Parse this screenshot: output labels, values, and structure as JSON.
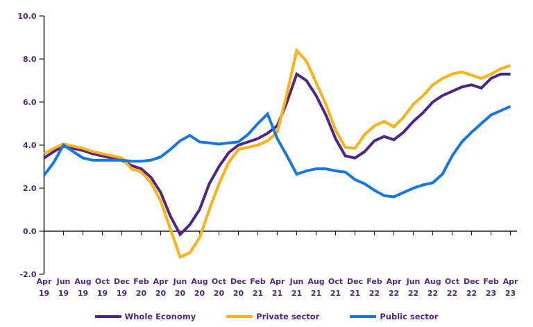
{
  "chart_data": {
    "type": "line",
    "title": "",
    "xlabel": "",
    "ylabel": "",
    "ylim": [
      -2.0,
      10.0
    ],
    "grid": false,
    "legend_position": "bottom",
    "x_range": [
      "Apr 19",
      "Apr 23"
    ],
    "points_per_tick": 2,
    "y_ticks": [
      10.0,
      8.0,
      6.0,
      4.0,
      2.0,
      0.0,
      -2.0
    ],
    "y_tick_labels": [
      "10.0",
      "8.0",
      "6.0",
      "4.0",
      "2.0",
      "0.0",
      "-2.0"
    ],
    "x_tick_labels": [
      [
        "Apr",
        "19"
      ],
      [
        "Jun",
        "19"
      ],
      [
        "Aug",
        "19"
      ],
      [
        "Oct",
        "19"
      ],
      [
        "Dec",
        "19"
      ],
      [
        "Feb",
        "20"
      ],
      [
        "Apr",
        "20"
      ],
      [
        "Jun",
        "20"
      ],
      [
        "Aug",
        "20"
      ],
      [
        "Oct",
        "20"
      ],
      [
        "Dec",
        "20"
      ],
      [
        "Feb",
        "21"
      ],
      [
        "Apr",
        "21"
      ],
      [
        "Jun",
        "21"
      ],
      [
        "Aug",
        "21"
      ],
      [
        "Oct",
        "21"
      ],
      [
        "Dec",
        "21"
      ],
      [
        "Feb",
        "22"
      ],
      [
        "Apr",
        "22"
      ],
      [
        "Jun",
        "22"
      ],
      [
        "Aug",
        "22"
      ],
      [
        "Oct",
        "22"
      ],
      [
        "Dec",
        "22"
      ],
      [
        "Feb",
        "23"
      ],
      [
        "Apr",
        "23"
      ]
    ],
    "series": [
      {
        "name": "Whole Economy",
        "color": "#4F2683",
        "values": [
          3.4,
          3.7,
          3.95,
          3.85,
          3.75,
          3.6,
          3.5,
          3.4,
          3.3,
          3.05,
          2.9,
          2.5,
          1.8,
          0.7,
          -0.15,
          0.3,
          1.0,
          2.2,
          3.0,
          3.65,
          4.0,
          4.15,
          4.3,
          4.55,
          4.9,
          6.0,
          7.3,
          7.0,
          6.3,
          5.4,
          4.3,
          3.5,
          3.4,
          3.7,
          4.2,
          4.4,
          4.25,
          4.6,
          5.1,
          5.5,
          6.0,
          6.3,
          6.5,
          6.7,
          6.8,
          6.65,
          7.1,
          7.3,
          7.3
        ]
      },
      {
        "name": "Private sector",
        "color": "#FFB114",
        "values": [
          3.6,
          3.85,
          4.05,
          3.95,
          3.85,
          3.7,
          3.6,
          3.5,
          3.4,
          2.9,
          2.75,
          2.25,
          1.4,
          0.1,
          -1.2,
          -1.0,
          -0.3,
          1.0,
          2.2,
          3.2,
          3.8,
          3.9,
          4.0,
          4.2,
          4.6,
          6.4,
          8.4,
          7.9,
          6.9,
          5.9,
          4.7,
          3.9,
          3.85,
          4.5,
          4.9,
          5.1,
          4.85,
          5.3,
          5.9,
          6.3,
          6.8,
          7.1,
          7.3,
          7.4,
          7.25,
          7.1,
          7.3,
          7.55,
          7.7
        ]
      },
      {
        "name": "Public sector",
        "color": "#1478E0",
        "values": [
          2.6,
          3.2,
          4.0,
          3.7,
          3.4,
          3.3,
          3.3,
          3.3,
          3.3,
          3.25,
          3.25,
          3.3,
          3.45,
          3.8,
          4.2,
          4.45,
          4.15,
          4.1,
          4.05,
          4.1,
          4.15,
          4.5,
          5.0,
          5.45,
          4.3,
          3.5,
          2.65,
          2.8,
          2.9,
          2.9,
          2.8,
          2.75,
          2.4,
          2.2,
          1.9,
          1.65,
          1.6,
          1.8,
          2.0,
          2.15,
          2.25,
          2.65,
          3.5,
          4.15,
          4.6,
          5.0,
          5.4,
          5.6,
          5.8
        ]
      }
    ]
  }
}
